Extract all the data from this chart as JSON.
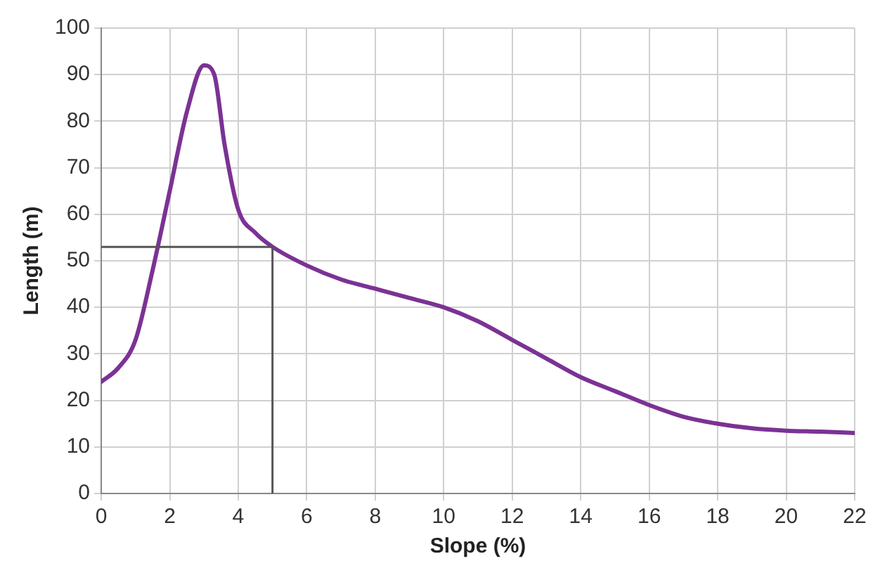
{
  "chart_data": {
    "type": "line",
    "xlabel": "Slope (%)",
    "ylabel": "Length (m)",
    "x": [
      0,
      0.5,
      1,
      1.5,
      2,
      2.5,
      3,
      3.3,
      3.6,
      4,
      4.5,
      5,
      6,
      7,
      8,
      9,
      10,
      11,
      12,
      13,
      14,
      15,
      16,
      17,
      18,
      19,
      20,
      21,
      22
    ],
    "series": [
      {
        "color": "#7b3294",
        "values": [
          24,
          27,
          33,
          48,
          65,
          82,
          92,
          90,
          75,
          61,
          56,
          53,
          49,
          46,
          44,
          42,
          40,
          37,
          33,
          29,
          25,
          22,
          19,
          16.5,
          15,
          14,
          13.5,
          13.3,
          13
        ]
      }
    ],
    "xlim": [
      0,
      22
    ],
    "xticks": [
      0,
      2,
      4,
      6,
      8,
      10,
      12,
      14,
      16,
      18,
      20,
      22
    ],
    "ylim": [
      0,
      100
    ],
    "yticks": [
      0,
      10,
      20,
      30,
      40,
      50,
      60,
      70,
      80,
      90,
      100
    ],
    "grid": true,
    "legend": false,
    "marker": "none",
    "line_style": "solid",
    "ref_lines": [
      {
        "axis": "x",
        "value": 5,
        "color": "#555555"
      },
      {
        "axis": "y",
        "value": 53,
        "color": "#555555"
      }
    ]
  }
}
